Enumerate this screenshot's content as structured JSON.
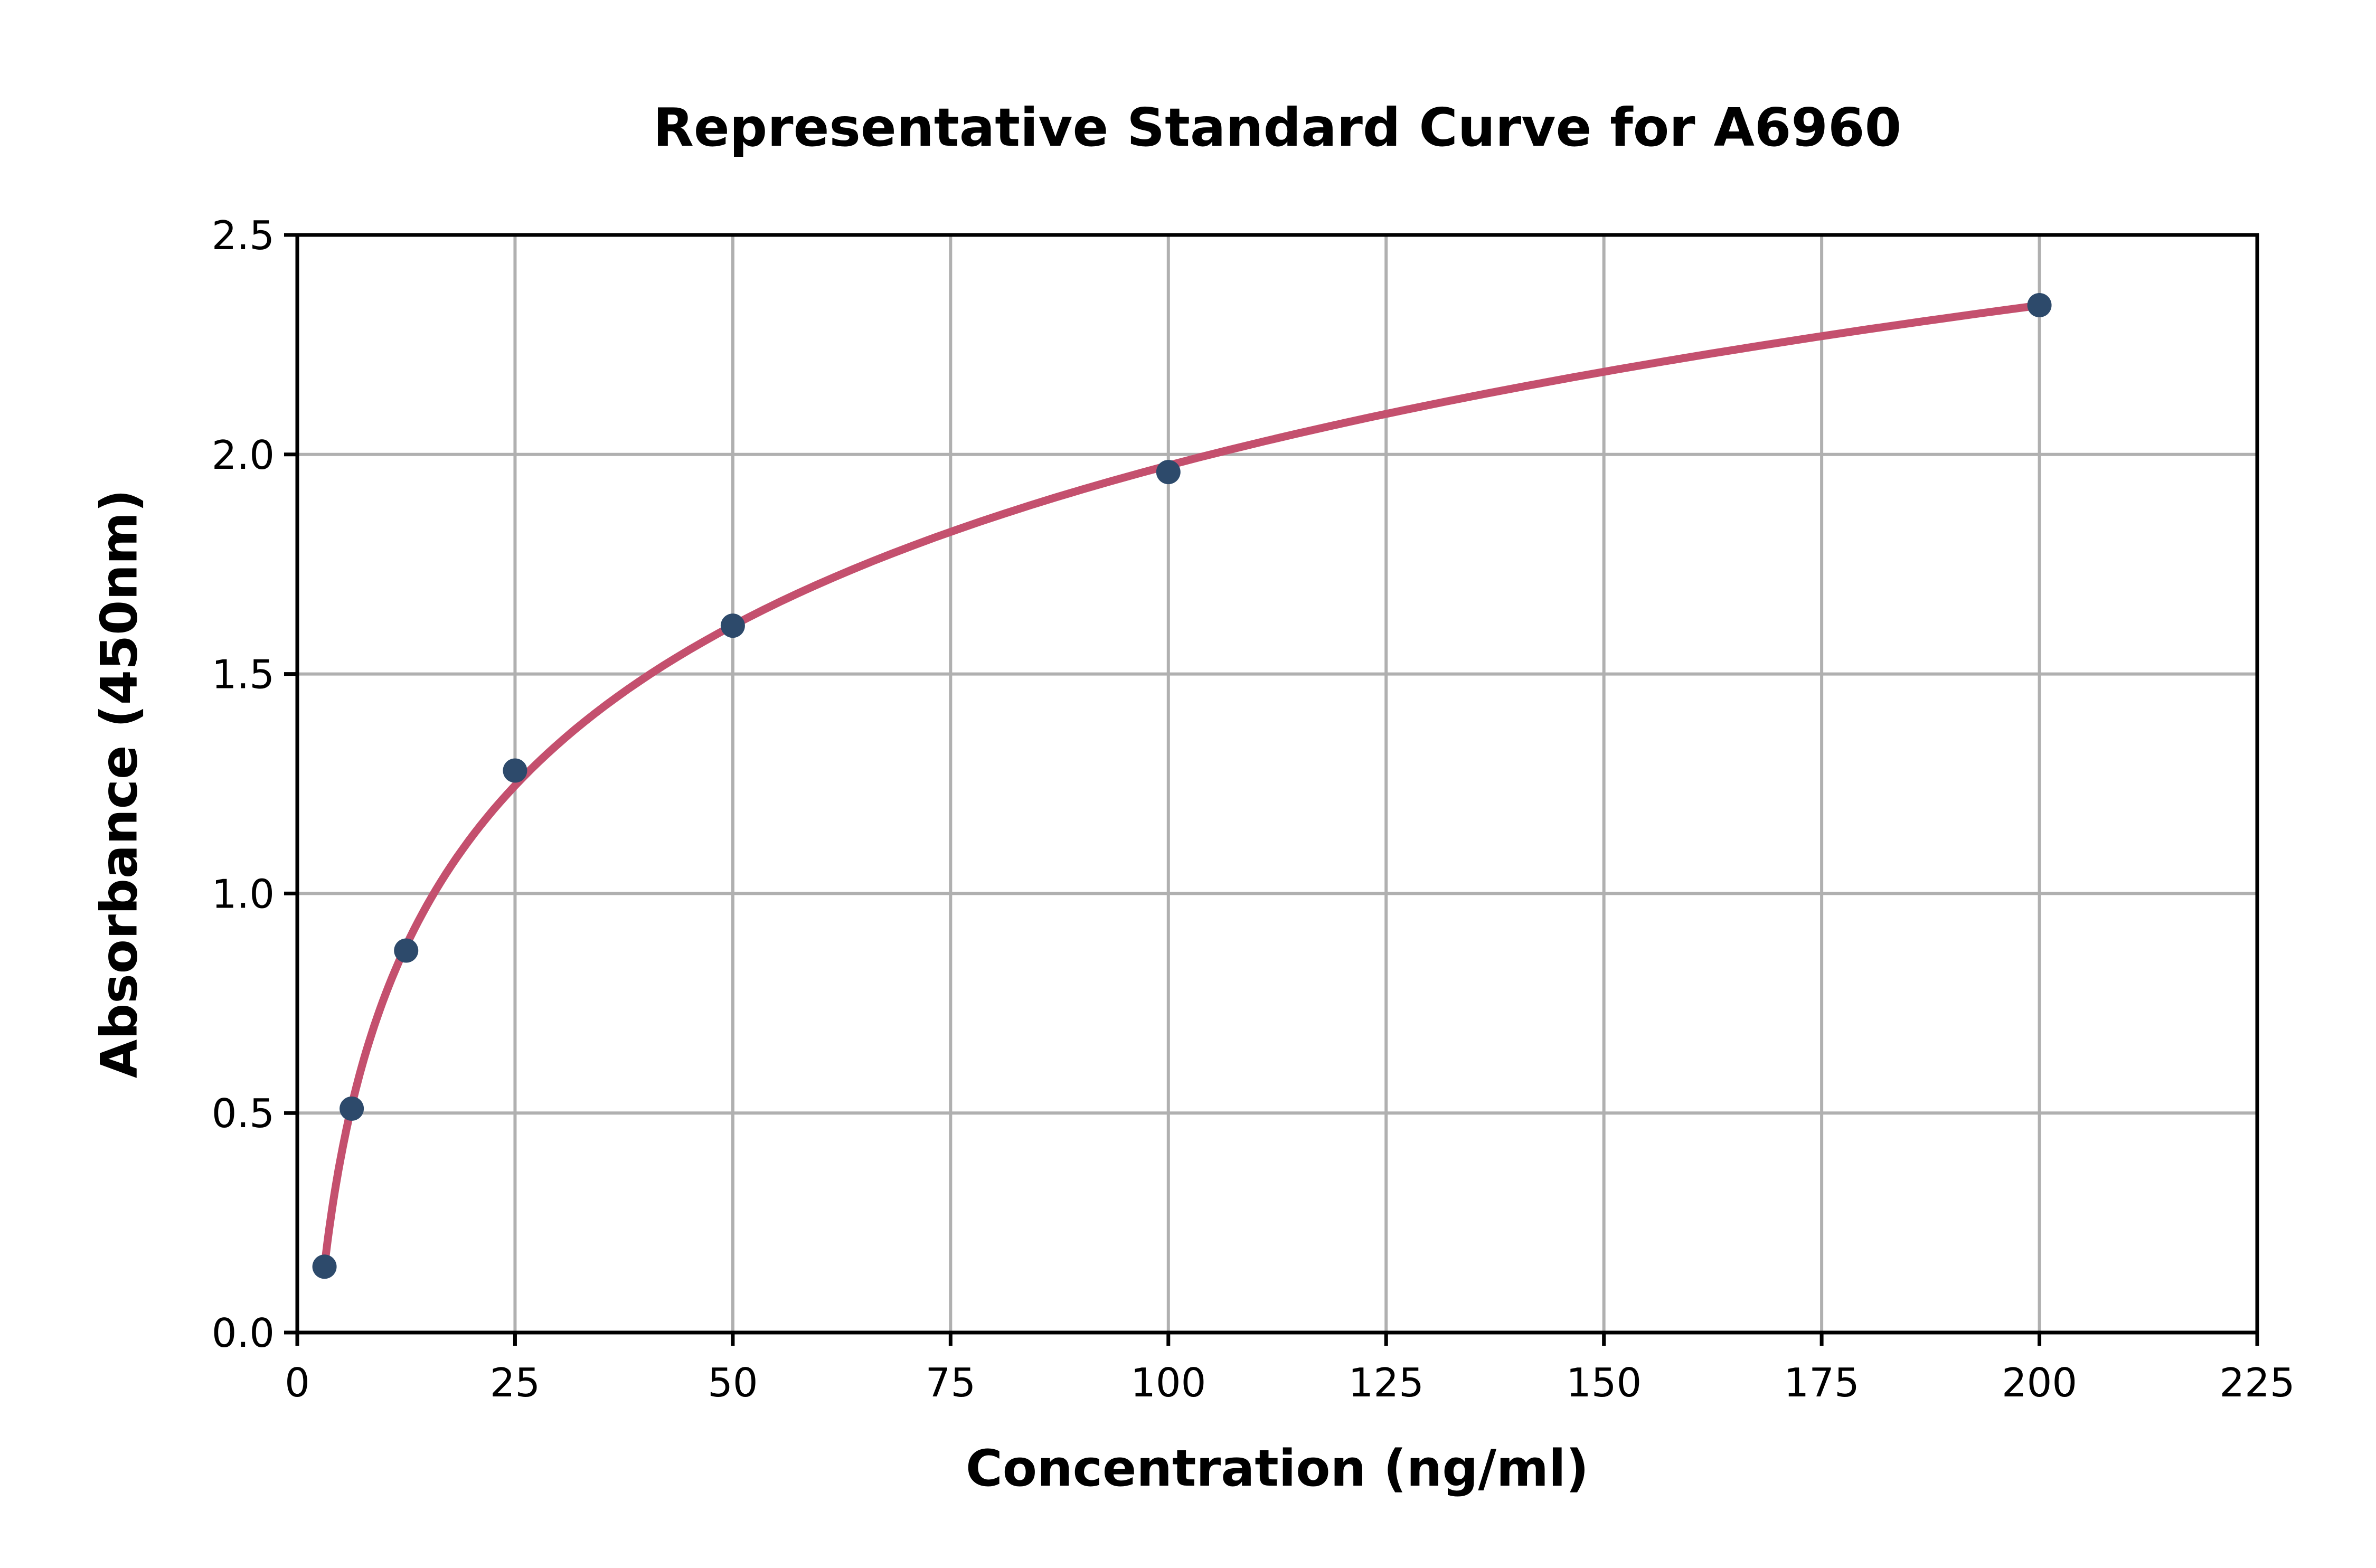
{
  "chart_data": {
    "type": "scatter",
    "title": "Representative Standard Curve for A6960",
    "xlabel": "Concentration (ng/ml)",
    "ylabel": "Absorbance (450nm)",
    "series": [
      {
        "name": "standard-points",
        "x": [
          3.125,
          6.25,
          12.5,
          25,
          50,
          100,
          200
        ],
        "y": [
          0.15,
          0.51,
          0.87,
          1.28,
          1.61,
          1.96,
          2.34
        ]
      }
    ],
    "fit_curve": "logarithmic-through-points",
    "xlim": [
      0,
      225
    ],
    "ylim": [
      0,
      2.5
    ],
    "xticks": [
      0,
      25,
      50,
      75,
      100,
      125,
      150,
      175,
      200,
      225
    ],
    "yticks": [
      0,
      0.5,
      1.0,
      1.5,
      2.0,
      2.5
    ],
    "xtick_labels": [
      "0",
      "25",
      "50",
      "75",
      "100",
      "125",
      "150",
      "175",
      "200",
      "225"
    ],
    "ytick_labels": [
      "0.0",
      "0.5",
      "1.0",
      "1.5",
      "2.0",
      "2.5"
    ],
    "grid": true,
    "legend_position": "none",
    "colors": {
      "marker": "#2d4a6b",
      "fit_line": "#c4506e",
      "grid": "#b0b0b0",
      "axis": "#000000",
      "background": "#ffffff"
    }
  }
}
